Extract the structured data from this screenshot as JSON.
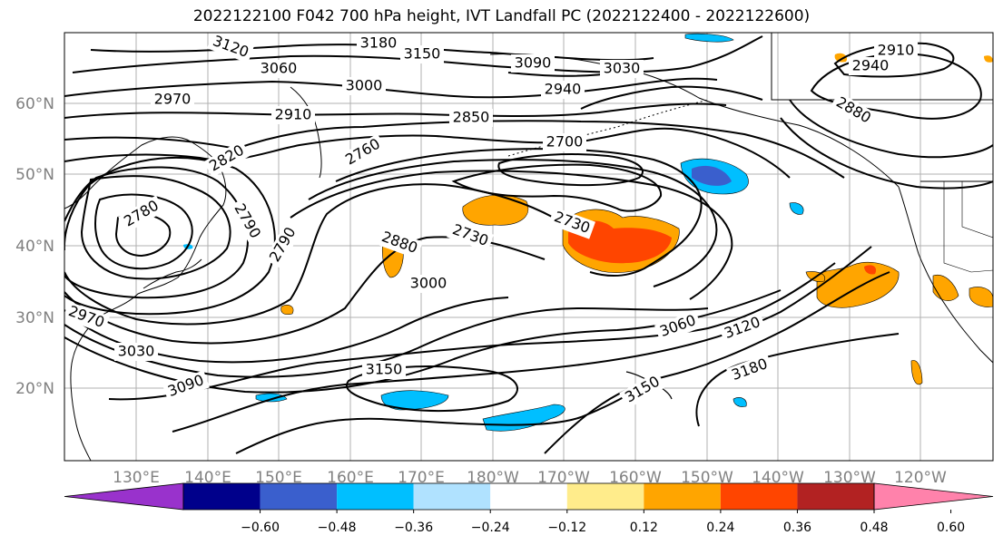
{
  "title": "2022122100 F042 700 hPa height, IVT Landfall PC (2022122400 - 2022122600)",
  "lat_labels": [
    "60°N",
    "50°N",
    "40°N",
    "30°N",
    "20°N"
  ],
  "lon_labels": [
    "130°E",
    "140°E",
    "150°E",
    "160°E",
    "170°E",
    "180°W",
    "170°W",
    "160°W",
    "150°W",
    "140°W",
    "130°W",
    "120°W"
  ],
  "contour_labels": [
    "3120",
    "3180",
    "3150",
    "3060",
    "3090",
    "3030",
    "3000",
    "2970",
    "2910",
    "2940",
    "2850",
    "2880",
    "2910",
    "2940",
    "2820",
    "2760",
    "2700",
    "2780",
    "2730",
    "2790",
    "2730",
    "2790",
    "2880",
    "3000",
    "2970",
    "3030",
    "3090",
    "3150",
    "3060",
    "3120",
    "3180",
    "3150"
  ],
  "colorbar": {
    "colors": [
      "#9932cc",
      "#00008b",
      "#3a5fcd",
      "#00bfff",
      "#b0e2ff",
      "#ffffff",
      "#ffec8b",
      "#ffa500",
      "#ff4500",
      "#b22222",
      "#ff82ab"
    ],
    "tick_labels": [
      "−0.60",
      "−0.48",
      "−0.36",
      "−0.24",
      "−0.12",
      "0.12",
      "0.24",
      "0.36",
      "0.48",
      "0.60"
    ]
  }
}
